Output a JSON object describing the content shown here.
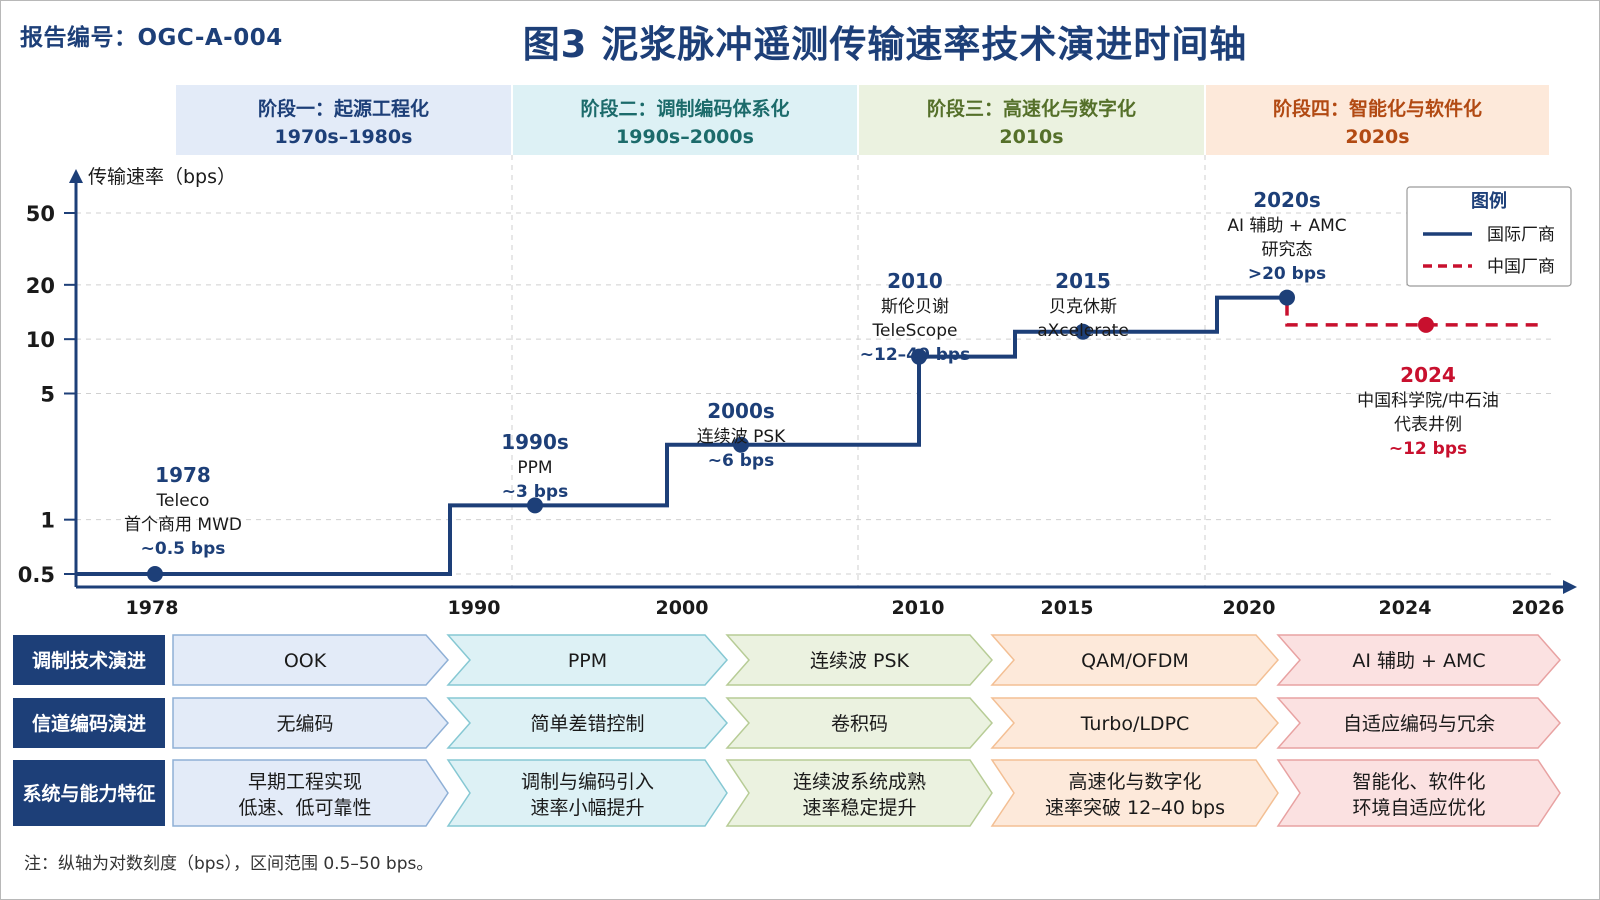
{
  "report_id": "报告编号：OGC-A-004",
  "title": "图3  泥浆脉冲遥测传输速率技术演进时间轴",
  "footnote": "注：纵轴为对数刻度（bps），区间范围 0.5–50 bps。",
  "colors": {
    "primary": "#1d3f78",
    "china": "#c8102e",
    "stage_bg": [
      "#e3ebf8",
      "#ddf1f5",
      "#ebf2e0",
      "#fde9da"
    ],
    "stage_fg": [
      "#1d3f78",
      "#1c6b6b",
      "#55702a",
      "#b24a13"
    ],
    "row_bg": [
      "#e3ebf8",
      "#ddf1f5",
      "#ebf2e0",
      "#fde9da",
      "#fbe1e1"
    ],
    "row_stroke": [
      "#8fb0d6",
      "#86c8d3",
      "#b7cc96",
      "#f3bf94",
      "#e8a2a2"
    ]
  },
  "stages": [
    {
      "name": "阶段一：起源工程化",
      "period": "1970s–1980s"
    },
    {
      "name": "阶段二：调制编码体系化",
      "period": "1990s–2000s"
    },
    {
      "name": "阶段三：高速化与数字化",
      "period": "2010s"
    },
    {
      "name": "阶段四：智能化与软件化",
      "period": "2020s"
    }
  ],
  "chart_data": {
    "type": "line",
    "ylabel": "传输速率（bps）",
    "y_scale": "log",
    "ylim": [
      0.5,
      50
    ],
    "y_ticks": [
      {
        "value": 0.5,
        "label": "0.5"
      },
      {
        "value": 1,
        "label": "1"
      },
      {
        "value": 5,
        "label": "5"
      },
      {
        "value": 10,
        "label": "10"
      },
      {
        "value": 20,
        "label": "20"
      },
      {
        "value": 50,
        "label": "50"
      }
    ],
    "x_ticks": [
      "1978",
      "1990",
      "2000",
      "2010",
      "2015",
      "2020",
      "2024",
      "2026"
    ],
    "grid": true,
    "legend": {
      "title": "图例",
      "position": "top-right",
      "items": [
        {
          "label": "国际厂商",
          "style": "solid"
        },
        {
          "label": "中国厂商",
          "style": "dashed"
        }
      ]
    },
    "series": [
      {
        "name": "国际厂商",
        "style": "step-solid",
        "steps": [
          {
            "x": "1978",
            "y": 0.5
          },
          {
            "x": "1990",
            "y": 1.2
          },
          {
            "x": "2000",
            "y": 2.6
          },
          {
            "x": "2010",
            "y": 8
          },
          {
            "x": "2015",
            "y": 11
          },
          {
            "x": "2020",
            "y": 17
          }
        ],
        "points": [
          {
            "x": "1978",
            "y": 0.5
          },
          {
            "x": "1990s",
            "y": 1.2
          },
          {
            "x": "2000s",
            "y": 2.6
          },
          {
            "x": "2010",
            "y": 8
          },
          {
            "x": "2015",
            "y": 11
          },
          {
            "x": "2020s",
            "y": 17
          }
        ]
      },
      {
        "name": "中国厂商",
        "style": "dashed",
        "points": [
          {
            "x": "2024",
            "y": 12
          }
        ]
      }
    ],
    "annotations": [
      {
        "year": "1978",
        "lines": [
          "Teleco",
          "首个商用 MWD"
        ],
        "rate": "~0.5 bps",
        "color": "primary"
      },
      {
        "year": "1990s",
        "lines": [
          "PPM"
        ],
        "rate": "~3 bps",
        "color": "primary"
      },
      {
        "year": "2000s",
        "lines": [
          "连续波 PSK"
        ],
        "rate": "~6 bps",
        "color": "primary"
      },
      {
        "year": "2010",
        "lines": [
          "斯伦贝谢",
          "TeleScope"
        ],
        "rate": "~12–40 bps",
        "color": "primary"
      },
      {
        "year": "2015",
        "lines": [
          "贝克休斯",
          "aXcelerate"
        ],
        "rate": "",
        "color": "primary"
      },
      {
        "year": "2020s",
        "lines": [
          "AI 辅助 + AMC",
          "研究态"
        ],
        "rate": ">20 bps",
        "color": "primary"
      },
      {
        "year": "2024",
        "lines": [
          "中国科学院/中石油",
          "代表井例"
        ],
        "rate": "~12 bps",
        "color": "china"
      }
    ]
  },
  "evolution_rows": [
    {
      "label": "调制技术演进",
      "items": [
        "OOK",
        "PPM",
        "连续波 PSK",
        "QAM/OFDM",
        "AI 辅助 + AMC"
      ]
    },
    {
      "label": "信道编码演进",
      "items": [
        "无编码",
        "简单差错控制",
        "卷积码",
        "Turbo/LDPC",
        "自适应编码与冗余"
      ]
    },
    {
      "label": "系统与能力特征",
      "items": [
        [
          "早期工程实现",
          "低速、低可靠性"
        ],
        [
          "调制与编码引入",
          "速率小幅提升"
        ],
        [
          "连续波系统成熟",
          "速率稳定提升"
        ],
        [
          "高速化与数字化",
          "速率突破 12–40 bps"
        ],
        [
          "智能化、软件化",
          "环境自适应优化"
        ]
      ]
    }
  ]
}
